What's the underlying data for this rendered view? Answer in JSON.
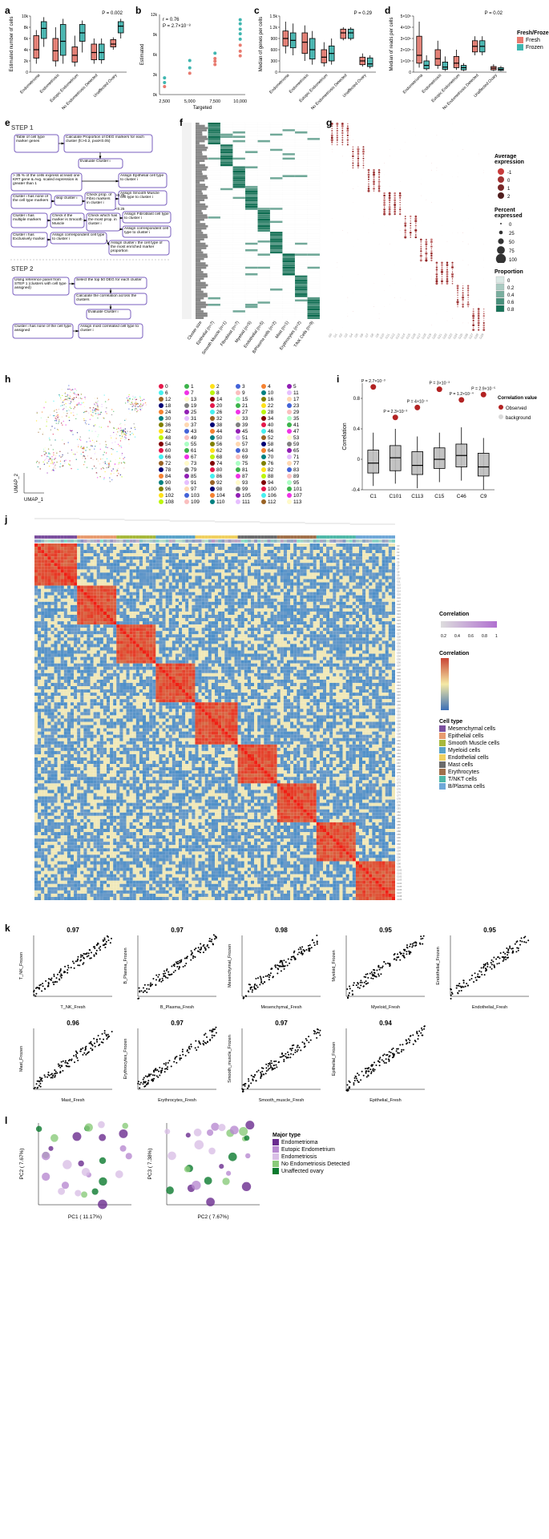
{
  "colors": {
    "fresh": "#e87a6f",
    "frozen": "#3fb6b0",
    "box_grey": "#bdbdbd",
    "obs": "#b22222",
    "background": "#d9d9d9",
    "heat_low": "#3b6fb6",
    "heat_mid": "#f5e9a5",
    "heat_high": "#c94434",
    "prop_low": "#ffffff",
    "prop_high": "#0b6b4f",
    "dot_low": "#f8e9e8",
    "dot_high": "#a31515",
    "celltype": {
      "Mesenchymal": "#7b4f9e",
      "Epithelial": "#e89b6f",
      "SmoothMuscle": "#a7b83b",
      "Myeloid": "#5aa3c9",
      "Endothelial": "#f0d060",
      "Mast": "#6b6b6b",
      "Erythrocytes": "#a0704a",
      "TNKT": "#4fb8a8",
      "BPlasma": "#6fa8d8"
    },
    "majortype": {
      "Endometrioma": "#6a2c8f",
      "EutopicEndometrium": "#b88ad1",
      "Endometriosis": "#d9bfe6",
      "NoEndometriosisDetected": "#8acb7a",
      "UnaffectedOvary": "#0b7a2e"
    }
  },
  "panels_top": {
    "categories": [
      "Endometrioma",
      "Endometriosis",
      "Eutopic Endometrium",
      "No Endometriosis Detected",
      "Unaffected Ovary"
    ],
    "a": {
      "ylabel": "Estimated number of cells",
      "p": "P = 0.002",
      "ylim": [
        0,
        10000
      ],
      "boxes": [
        {
          "fresh": {
            "q1": 2500,
            "med": 4000,
            "q3": 6500,
            "lo": 1500,
            "hi": 7500
          },
          "frozen": {
            "q1": 6000,
            "med": 7800,
            "q3": 9000,
            "lo": 4500,
            "hi": 9800
          }
        },
        {
          "fresh": {
            "q1": 2000,
            "med": 3800,
            "q3": 6000,
            "lo": 1000,
            "hi": 8000
          },
          "frozen": {
            "q1": 3000,
            "med": 5500,
            "q3": 8500,
            "lo": 1500,
            "hi": 9500
          }
        },
        {
          "fresh": {
            "q1": 1800,
            "med": 3000,
            "q3": 4500,
            "lo": 1000,
            "hi": 6500
          },
          "frozen": {
            "q1": 5500,
            "med": 7000,
            "q3": 8500,
            "lo": 3500,
            "hi": 9200
          }
        },
        {
          "fresh": {
            "q1": 2200,
            "med": 3500,
            "q3": 5000,
            "lo": 1500,
            "hi": 6000
          },
          "frozen": {
            "q1": 2200,
            "med": 3500,
            "q3": 5000,
            "lo": 1500,
            "hi": 6000
          }
        },
        {
          "fresh": {
            "q1": 4500,
            "med": 5000,
            "q3": 5800,
            "lo": 4000,
            "hi": 6200
          },
          "frozen": {
            "q1": 7000,
            "med": 8200,
            "q3": 9000,
            "lo": 6000,
            "hi": 9500
          }
        }
      ]
    },
    "b": {
      "ylabel": "Estimated",
      "xlabel": "Targeted",
      "r_text": "r = 0.76",
      "p_text": "P = 2.7×10⁻⁸",
      "xticks": [
        2500,
        5000,
        7500,
        10000
      ],
      "ylim": [
        0,
        12000
      ],
      "points": [
        {
          "x": 2500,
          "y": 1800,
          "c": "frozen"
        },
        {
          "x": 2500,
          "y": 2500,
          "c": "frozen"
        },
        {
          "x": 2500,
          "y": 1200,
          "c": "fresh"
        },
        {
          "x": 5000,
          "y": 3200,
          "c": "fresh"
        },
        {
          "x": 5000,
          "y": 4000,
          "c": "frozen"
        },
        {
          "x": 5000,
          "y": 5100,
          "c": "frozen"
        },
        {
          "x": 7500,
          "y": 4500,
          "c": "fresh"
        },
        {
          "x": 7500,
          "y": 5400,
          "c": "fresh"
        },
        {
          "x": 7500,
          "y": 5000,
          "c": "fresh"
        },
        {
          "x": 7500,
          "y": 6200,
          "c": "frozen"
        },
        {
          "x": 10000,
          "y": 5800,
          "c": "fresh"
        },
        {
          "x": 10000,
          "y": 6500,
          "c": "fresh"
        },
        {
          "x": 10000,
          "y": 7400,
          "c": "fresh"
        },
        {
          "x": 10000,
          "y": 8300,
          "c": "frozen"
        },
        {
          "x": 10000,
          "y": 9100,
          "c": "frozen"
        },
        {
          "x": 10000,
          "y": 9800,
          "c": "frozen"
        },
        {
          "x": 10000,
          "y": 10600,
          "c": "frozen"
        },
        {
          "x": 10000,
          "y": 11200,
          "c": "frozen"
        }
      ]
    },
    "c": {
      "ylabel": "Median of genes per cells",
      "p": "P = 0.29",
      "ylim": [
        0,
        1500
      ],
      "boxes": [
        {
          "fresh": {
            "q1": 700,
            "med": 900,
            "q3": 1100,
            "lo": 500,
            "hi": 1350
          },
          "frozen": {
            "q1": 650,
            "med": 850,
            "q3": 1050,
            "lo": 450,
            "hi": 1300
          }
        },
        {
          "fresh": {
            "q1": 500,
            "med": 800,
            "q3": 1050,
            "lo": 300,
            "hi": 1250
          },
          "frozen": {
            "q1": 350,
            "med": 600,
            "q3": 900,
            "lo": 200,
            "hi": 1100
          }
        },
        {
          "fresh": {
            "q1": 250,
            "med": 400,
            "q3": 600,
            "lo": 150,
            "hi": 800
          },
          "frozen": {
            "q1": 300,
            "med": 500,
            "q3": 700,
            "lo": 200,
            "hi": 900
          }
        },
        {
          "fresh": {
            "q1": 900,
            "med": 1050,
            "q3": 1150,
            "lo": 850,
            "hi": 1200
          },
          "frozen": {
            "q1": 900,
            "med": 1050,
            "q3": 1150,
            "lo": 850,
            "hi": 1200
          }
        },
        {
          "fresh": {
            "q1": 200,
            "med": 300,
            "q3": 400,
            "lo": 150,
            "hi": 500
          },
          "frozen": {
            "q1": 150,
            "med": 220,
            "q3": 380,
            "lo": 100,
            "hi": 450
          }
        }
      ]
    },
    "d": {
      "ylabel": "Median of reads per cells",
      "p": "P = 0.02",
      "ylim": [
        0,
        500000
      ],
      "yticks_text": [
        "0",
        "1×10⁵",
        "2×10⁵",
        "3×10⁵",
        "4×10⁵",
        "5×10⁵"
      ],
      "boxes": [
        {
          "fresh": {
            "q1": 80000,
            "med": 150000,
            "q3": 320000,
            "lo": 40000,
            "hi": 450000
          },
          "frozen": {
            "q1": 30000,
            "med": 60000,
            "q3": 100000,
            "lo": 15000,
            "hi": 150000
          }
        },
        {
          "fresh": {
            "q1": 60000,
            "med": 120000,
            "q3": 200000,
            "lo": 30000,
            "hi": 280000
          },
          "frozen": {
            "q1": 25000,
            "med": 45000,
            "q3": 90000,
            "lo": 10000,
            "hi": 140000
          }
        },
        {
          "fresh": {
            "q1": 40000,
            "med": 80000,
            "q3": 140000,
            "lo": 20000,
            "hi": 200000
          },
          "frozen": {
            "q1": 20000,
            "med": 40000,
            "q3": 60000,
            "lo": 10000,
            "hi": 80000
          }
        },
        {
          "fresh": {
            "q1": 180000,
            "med": 230000,
            "q3": 280000,
            "lo": 150000,
            "hi": 320000
          },
          "frozen": {
            "q1": 180000,
            "med": 230000,
            "q3": 280000,
            "lo": 150000,
            "hi": 320000
          }
        },
        {
          "fresh": {
            "q1": 20000,
            "med": 35000,
            "q3": 50000,
            "lo": 10000,
            "hi": 70000
          },
          "frozen": {
            "q1": 15000,
            "med": 25000,
            "q3": 40000,
            "lo": 8000,
            "hi": 55000
          }
        }
      ]
    },
    "legend": {
      "title": "Fresh/Frozen",
      "items": [
        "Fresh",
        "Frozen"
      ]
    }
  },
  "panel_e": {
    "step1_label": "STEP 1",
    "step2_label": "STEP 2",
    "boxes": [
      "Table of cell type marker genes",
      "Calculate Proportion of DEG markers for each cluster (fc>0.2, pval<0.05)",
      "Evaluate Cluster i",
      "> 35 % of the cells express at least one KRT gene & Avg. scaled expression is greater than 1",
      "Assign Epithelial cell type to cluster i",
      "Cluster i has none of the cell type markers",
      "skip cluster i",
      "Check prop. of Fibro markers in cluster i",
      "Assign Smooth Muscle cell type to cluster i",
      "Cluster i has multiple markers",
      "Check if the marker is Smooth Muscle",
      "Check which has the most prop. in cluster i",
      "Assign Fibroblast cell type to cluster i",
      "Assign correspondent cell type to cluster i",
      "Cluster i has Exclusively marker",
      "Assign correspondent cell type to cluster i",
      "Assign cluster i the cell type of the most enriched marker proportion",
      "Using reference panel from STEP 1 (clusters with cell type assigned)",
      "Select the top 50 DEG for each cluster",
      "Calculate the correlation across the clusters",
      "Evaluate Cluster i",
      "Cluster i has none of the cell type assigned",
      "Assign most correlated cell type to cluster i"
    ],
    "thresholds": [
      ">0.25",
      "<0.25"
    ]
  },
  "panel_f": {
    "xlabels": [
      "Cluster size",
      "Epithelial (n=7)",
      "Smooth Muscle (n=1)",
      "Fibroblast (n=7)",
      "Myeloid (n=5)",
      "Endothelial (n=5)",
      "B/Plasma cells (n=2)",
      "Mast (n=1)",
      "Erythrocytes (n=2)",
      "T/NK Cells (n=9)"
    ],
    "legend_title": "Proportion",
    "legend_steps": [
      0,
      0.2,
      0.4,
      0.6,
      0.8
    ]
  },
  "panel_g": {
    "legend_avg_title": "Average expression",
    "legend_avg_steps": [
      -1,
      0,
      1,
      2
    ],
    "legend_pct_title": "Percent expressed",
    "legend_pct_steps": [
      0,
      25,
      50,
      75,
      100
    ]
  },
  "panel_h": {
    "x": "UMAP_1",
    "y": "UMAP_2",
    "cluster_ids": [
      0,
      1,
      2,
      3,
      4,
      5,
      6,
      7,
      8,
      9,
      10,
      11,
      12,
      13,
      14,
      15,
      16,
      17,
      18,
      19,
      20,
      21,
      22,
      23,
      24,
      25,
      26,
      27,
      28,
      29,
      30,
      31,
      32,
      33,
      34,
      35,
      36,
      37,
      38,
      39,
      40,
      41,
      42,
      43,
      44,
      45,
      46,
      47,
      48,
      49,
      50,
      51,
      52,
      53,
      54,
      55,
      56,
      57,
      58,
      59,
      60,
      61,
      62,
      63,
      64,
      65,
      66,
      67,
      68,
      69,
      70,
      71,
      72,
      73,
      74,
      75,
      76,
      77,
      78,
      79,
      80,
      81,
      82,
      83,
      84,
      85,
      86,
      87,
      88,
      89,
      90,
      91,
      92,
      93,
      94,
      95,
      96,
      97,
      98,
      99,
      100,
      101,
      102,
      103,
      104,
      105,
      106,
      107,
      108,
      109,
      110,
      111,
      112,
      113
    ],
    "palette": [
      "#e6194b",
      "#3cb44b",
      "#ffe119",
      "#4363d8",
      "#f58231",
      "#911eb4",
      "#46f0f0",
      "#f032e6",
      "#bcf60c",
      "#fabebe",
      "#008080",
      "#e6beff",
      "#9a6324",
      "#fffac8",
      "#800000",
      "#aaffc3",
      "#808000",
      "#ffd8b1",
      "#000075",
      "#808080"
    ]
  },
  "panel_i": {
    "ylabel": "Correlation",
    "ylim": [
      -0.4,
      1.0
    ],
    "categories": [
      "C1",
      "C101",
      "C113",
      "C15",
      "C46",
      "C9"
    ],
    "pvalues": [
      "P = 2.7×10⁻³",
      "P = 2.3×10⁻³",
      "P = 4×10⁻⁴",
      "P = 3×10⁻³",
      "P = 1.2×10⁻⁴",
      "P = 2.9×10⁻⁵"
    ],
    "boxes": [
      {
        "q1": -0.18,
        "med": -0.05,
        "q3": 0.12,
        "lo": -0.35,
        "hi": 0.35,
        "obs": 0.95
      },
      {
        "q1": -0.15,
        "med": 0.02,
        "q3": 0.18,
        "lo": -0.32,
        "hi": 0.4,
        "obs": 0.55
      },
      {
        "q1": -0.2,
        "med": -0.08,
        "q3": 0.1,
        "lo": -0.38,
        "hi": 0.3,
        "obs": 0.68
      },
      {
        "q1": -0.12,
        "med": 0.0,
        "q3": 0.15,
        "lo": -0.3,
        "hi": 0.35,
        "obs": 0.92
      },
      {
        "q1": -0.1,
        "med": 0.05,
        "q3": 0.2,
        "lo": -0.28,
        "hi": 0.42,
        "obs": 0.78
      },
      {
        "q1": -0.22,
        "med": -0.1,
        "q3": 0.08,
        "lo": -0.4,
        "hi": 0.28,
        "obs": 0.85
      }
    ],
    "legend": {
      "title": "Correlation value",
      "items": [
        "Observed",
        "background"
      ]
    }
  },
  "panel_j": {
    "legend_corr_title": "Correlation",
    "legend_corr_steps": [
      0.2,
      0.4,
      0.6,
      0.8,
      1.0
    ],
    "legend_celltype_title": "Cell type",
    "celltype_items": [
      "Mesenchymal cells",
      "Epithelial cells",
      "Smooth Muscle cells",
      "Myeloid cells",
      "Endothelial cells",
      "Mast cells",
      "Erythrocytes",
      "T/NKT cells",
      "B/Plasma cells"
    ],
    "correlation_bar_title": "Correlation",
    "heat_steps": [
      -0.5,
      0,
      0.5,
      1.0
    ]
  },
  "panel_k": {
    "plots": [
      {
        "x": "T_NK_Fresh",
        "y": "T_NK_Frozen",
        "r": "0.97"
      },
      {
        "x": "B_Plasma_Fresh",
        "y": "B_Plasma_Frozen",
        "r": "0.97"
      },
      {
        "x": "Mesenchymal_Fresh",
        "y": "Mesenchymal_Frozen",
        "r": "0.98"
      },
      {
        "x": "Myeloid_Fresh",
        "y": "Myeloid_Frozen",
        "r": "0.95"
      },
      {
        "x": "Endothelial_Fresh",
        "y": "Endothelial_Frozen",
        "r": "0.95"
      },
      {
        "x": "Mast_Fresh",
        "y": "Mast_Frozen",
        "r": "0.96"
      },
      {
        "x": "Erythrocytes_Fresh",
        "y": "Erythrocytes_Frozen",
        "r": "0.97"
      },
      {
        "x": "Smooth_muscle_Fresh",
        "y": "Smooth_muscle_Frozen",
        "r": "0.97"
      },
      {
        "x": "Epithelial_Fresh",
        "y": "Epithelial_Frozen",
        "r": "0.94"
      }
    ]
  },
  "panel_l": {
    "plots": [
      {
        "x": "PC1 ( 11.17%)",
        "y": "PC2 ( 7.67%)",
        "xlim": [
          -0.1,
          0.3
        ],
        "ylim": [
          -0.4,
          0.2
        ]
      },
      {
        "x": "PC2 ( 7.67%)",
        "y": "PC3 ( 7.38%)",
        "xlim": [
          -0.4,
          0.2
        ],
        "ylim": [
          -0.1,
          0.2
        ]
      }
    ],
    "legend_title": "Major type",
    "legend_items": [
      "Endometrioma",
      "Eutopic Endometrium",
      "Endometriosis",
      "No Endometriosis Detected",
      "Unaffected ovary"
    ]
  }
}
